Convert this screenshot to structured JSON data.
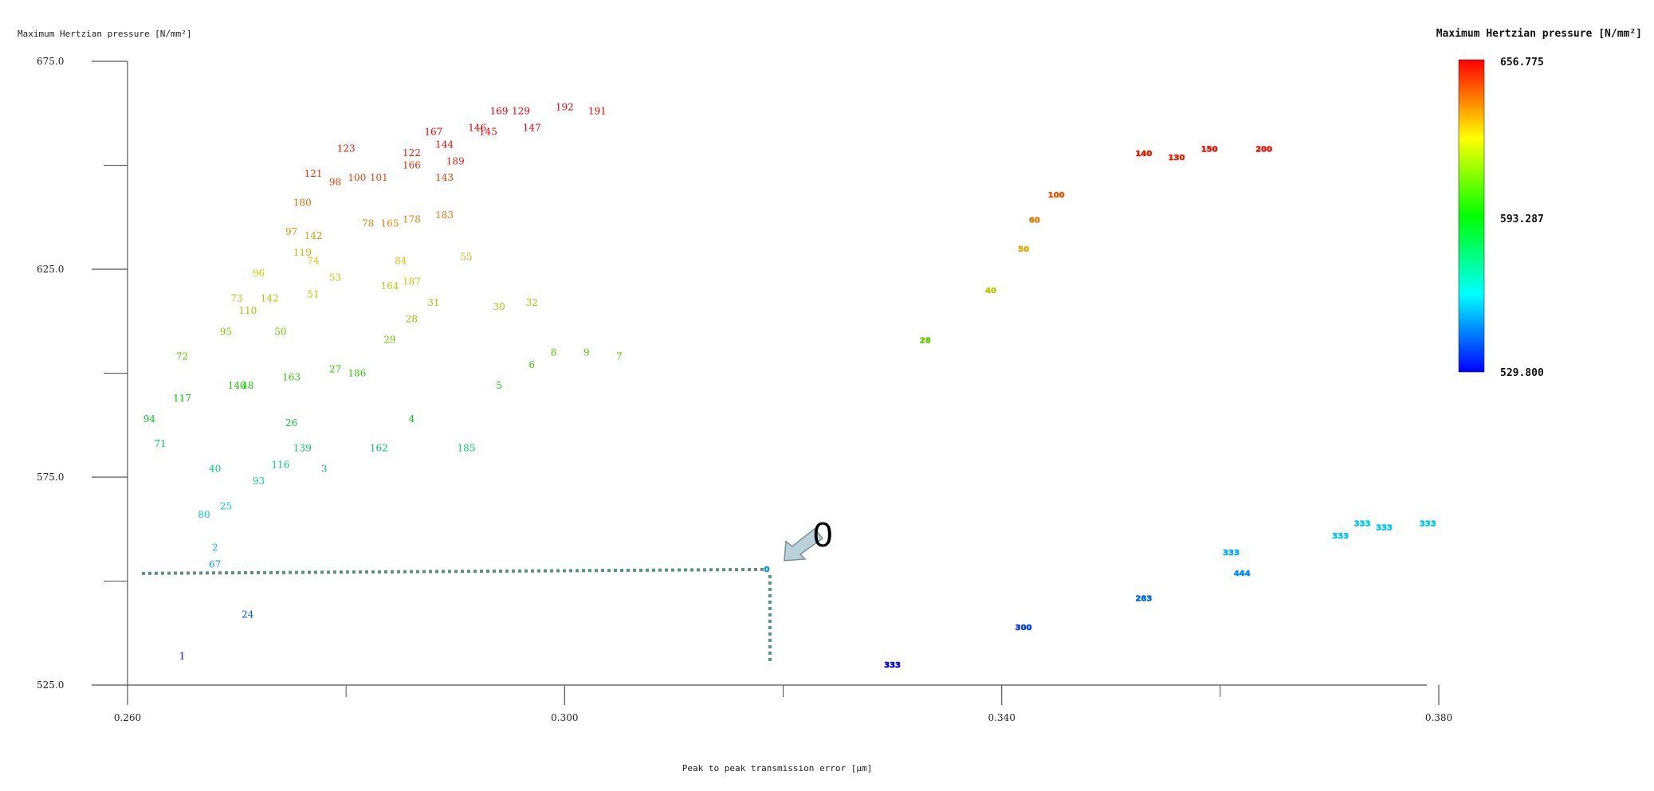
{
  "chart_data": {
    "type": "scatter",
    "title": "",
    "ylabel": "Maximum Hertzian pressure [N/mm²]",
    "xlabel": "Peak to peak transmission error [μm]",
    "xlim": [
      0.26,
      0.38
    ],
    "ylim": [
      525.0,
      675.0
    ],
    "x_ticks": [
      "0.260",
      "0.300",
      "0.340",
      "0.380"
    ],
    "y_ticks": [
      "675.0",
      "625.0",
      "575.0",
      "525.0"
    ],
    "grid": false,
    "colorbar": {
      "title": "Maximum Hertzian pressure [N/mm²]",
      "max_label": "656.775",
      "mid_label": "593.287",
      "min_label": "529.800",
      "min": 529.8,
      "max": 656.775,
      "placement": "right"
    },
    "annotation": {
      "label": "0",
      "x": 0.3185,
      "y": 553.0,
      "guide_color": "#5f8f7d",
      "arrow_color": "#b9d3dc"
    },
    "series": [
      {
        "points": [
          {
            "label": "1",
            "x": 0.265,
            "y": 532
          },
          {
            "label": "24",
            "x": 0.271,
            "y": 542
          },
          {
            "label": "67",
            "x": 0.268,
            "y": 554
          },
          {
            "label": "2",
            "x": 0.268,
            "y": 558
          },
          {
            "label": "80",
            "x": 0.267,
            "y": 566
          },
          {
            "label": "25",
            "x": 0.269,
            "y": 568
          },
          {
            "label": "93",
            "x": 0.272,
            "y": 574
          },
          {
            "label": "40",
            "x": 0.268,
            "y": 577
          },
          {
            "label": "116",
            "x": 0.274,
            "y": 578
          },
          {
            "label": "3",
            "x": 0.278,
            "y": 577
          },
          {
            "label": "71",
            "x": 0.263,
            "y": 583
          },
          {
            "label": "139",
            "x": 0.276,
            "y": 582
          },
          {
            "label": "162",
            "x": 0.283,
            "y": 582
          },
          {
            "label": "185",
            "x": 0.291,
            "y": 582
          },
          {
            "label": "94",
            "x": 0.262,
            "y": 589
          },
          {
            "label": "26",
            "x": 0.275,
            "y": 588
          },
          {
            "label": "4",
            "x": 0.286,
            "y": 589
          },
          {
            "label": "117",
            "x": 0.265,
            "y": 594
          },
          {
            "label": "140",
            "x": 0.27,
            "y": 597
          },
          {
            "label": "48",
            "x": 0.271,
            "y": 597
          },
          {
            "label": "163",
            "x": 0.275,
            "y": 599
          },
          {
            "label": "27",
            "x": 0.279,
            "y": 601
          },
          {
            "label": "186",
            "x": 0.281,
            "y": 600
          },
          {
            "label": "5",
            "x": 0.294,
            "y": 597
          },
          {
            "label": "6",
            "x": 0.297,
            "y": 602
          },
          {
            "label": "8",
            "x": 0.299,
            "y": 605
          },
          {
            "label": "9",
            "x": 0.302,
            "y": 605
          },
          {
            "label": "7",
            "x": 0.305,
            "y": 604
          },
          {
            "label": "72",
            "x": 0.265,
            "y": 604
          },
          {
            "label": "95",
            "x": 0.269,
            "y": 610
          },
          {
            "label": "50",
            "x": 0.274,
            "y": 610
          },
          {
            "label": "29",
            "x": 0.284,
            "y": 608
          },
          {
            "label": "28",
            "x": 0.286,
            "y": 613
          },
          {
            "label": "110",
            "x": 0.271,
            "y": 615
          },
          {
            "label": "73",
            "x": 0.27,
            "y": 618
          },
          {
            "label": "142",
            "x": 0.273,
            "y": 618
          },
          {
            "label": "51",
            "x": 0.277,
            "y": 619
          },
          {
            "label": "164",
            "x": 0.284,
            "y": 621
          },
          {
            "label": "187",
            "x": 0.286,
            "y": 622
          },
          {
            "label": "31",
            "x": 0.288,
            "y": 617
          },
          {
            "label": "30",
            "x": 0.294,
            "y": 616
          },
          {
            "label": "32",
            "x": 0.297,
            "y": 617
          },
          {
            "label": "96",
            "x": 0.272,
            "y": 624
          },
          {
            "label": "53",
            "x": 0.279,
            "y": 623
          },
          {
            "label": "74",
            "x": 0.277,
            "y": 627
          },
          {
            "label": "84",
            "x": 0.285,
            "y": 627
          },
          {
            "label": "55",
            "x": 0.291,
            "y": 628
          },
          {
            "label": "119",
            "x": 0.276,
            "y": 629
          },
          {
            "label": "97",
            "x": 0.275,
            "y": 634
          },
          {
            "label": "142",
            "x": 0.277,
            "y": 633
          },
          {
            "label": "78",
            "x": 0.282,
            "y": 636
          },
          {
            "label": "165",
            "x": 0.284,
            "y": 636
          },
          {
            "label": "178",
            "x": 0.286,
            "y": 637
          },
          {
            "label": "183",
            "x": 0.289,
            "y": 638
          },
          {
            "label": "180",
            "x": 0.276,
            "y": 641
          },
          {
            "label": "121",
            "x": 0.277,
            "y": 648
          },
          {
            "label": "98",
            "x": 0.279,
            "y": 646
          },
          {
            "label": "100",
            "x": 0.281,
            "y": 647
          },
          {
            "label": "101",
            "x": 0.283,
            "y": 647
          },
          {
            "label": "143",
            "x": 0.289,
            "y": 647
          },
          {
            "label": "123",
            "x": 0.28,
            "y": 654
          },
          {
            "label": "122",
            "x": 0.286,
            "y": 653
          },
          {
            "label": "166",
            "x": 0.286,
            "y": 650
          },
          {
            "label": "144",
            "x": 0.289,
            "y": 655
          },
          {
            "label": "189",
            "x": 0.29,
            "y": 651
          },
          {
            "label": "167",
            "x": 0.288,
            "y": 658
          },
          {
            "label": "146",
            "x": 0.292,
            "y": 659
          },
          {
            "label": "145",
            "x": 0.293,
            "y": 658
          },
          {
            "label": "169",
            "x": 0.294,
            "y": 663
          },
          {
            "label": "129",
            "x": 0.296,
            "y": 663
          },
          {
            "label": "147",
            "x": 0.297,
            "y": 659
          },
          {
            "label": "192",
            "x": 0.3,
            "y": 664
          },
          {
            "label": "191",
            "x": 0.303,
            "y": 663
          }
        ]
      },
      {
        "points": [
          {
            "label": "0",
            "x": 0.3185,
            "y": 553
          },
          {
            "label": "333",
            "x": 0.33,
            "y": 530
          },
          {
            "label": "300",
            "x": 0.342,
            "y": 539
          },
          {
            "label": "283",
            "x": 0.353,
            "y": 546
          },
          {
            "label": "333",
            "x": 0.361,
            "y": 557
          },
          {
            "label": "444",
            "x": 0.362,
            "y": 552
          },
          {
            "label": "333",
            "x": 0.371,
            "y": 561
          },
          {
            "label": "333",
            "x": 0.373,
            "y": 564
          },
          {
            "label": "333",
            "x": 0.375,
            "y": 563
          },
          {
            "label": "333",
            "x": 0.379,
            "y": 564
          },
          {
            "label": "28",
            "x": 0.333,
            "y": 608
          },
          {
            "label": "40",
            "x": 0.339,
            "y": 620
          },
          {
            "label": "50",
            "x": 0.342,
            "y": 630
          },
          {
            "label": "60",
            "x": 0.343,
            "y": 637
          },
          {
            "label": "100",
            "x": 0.345,
            "y": 643
          },
          {
            "label": "140",
            "x": 0.353,
            "y": 653
          },
          {
            "label": "130",
            "x": 0.356,
            "y": 652
          },
          {
            "label": "150",
            "x": 0.359,
            "y": 654
          },
          {
            "label": "200",
            "x": 0.364,
            "y": 654
          }
        ]
      }
    ]
  }
}
